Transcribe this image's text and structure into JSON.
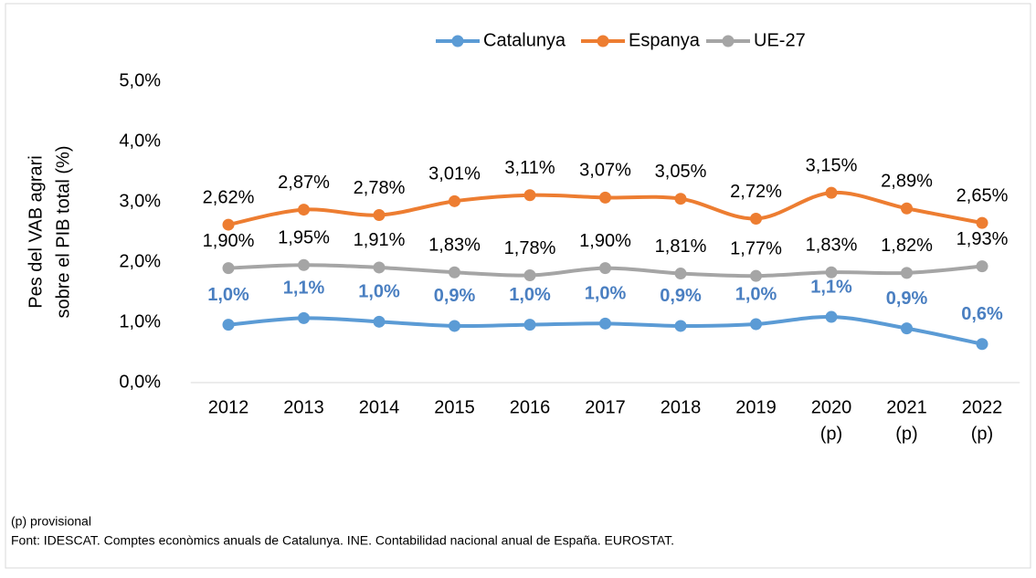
{
  "chart_data": {
    "type": "line",
    "y_label": [
      "Pes del VAB agrari",
      "sobre el PIB total (%)"
    ],
    "categories": [
      [
        "2012"
      ],
      [
        "2013"
      ],
      [
        "2014"
      ],
      [
        "2015"
      ],
      [
        "2016"
      ],
      [
        "2017"
      ],
      [
        "2018"
      ],
      [
        "2019"
      ],
      [
        "2020",
        "(p)"
      ],
      [
        "2021",
        "(p)"
      ],
      [
        "2022",
        "(p)"
      ]
    ],
    "series": [
      {
        "name": "Catalunya",
        "color": "#5b9bd5",
        "label_color": "#4a7fc1",
        "label_bold": true,
        "values": [
          0.96,
          1.07,
          1.01,
          0.94,
          0.96,
          0.98,
          0.94,
          0.97,
          1.09,
          0.9,
          0.64
        ],
        "value_labels": [
          "1,0%",
          "1,1%",
          "1,0%",
          "0,9%",
          "1,0%",
          "1,0%",
          "0,9%",
          "1,0%",
          "1,1%",
          "0,9%",
          "0,6%"
        ]
      },
      {
        "name": "Espanya",
        "color": "#ed7d31",
        "label_color": "#000000",
        "label_bold": false,
        "values": [
          2.62,
          2.87,
          2.78,
          3.01,
          3.11,
          3.07,
          3.05,
          2.72,
          3.15,
          2.89,
          2.65
        ],
        "value_labels": [
          "2,62%",
          "2,87%",
          "2,78%",
          "3,01%",
          "3,11%",
          "3,07%",
          "3,05%",
          "2,72%",
          "3,15%",
          "2,89%",
          "2,65%"
        ]
      },
      {
        "name": "UE-27",
        "color": "#a5a5a5",
        "label_color": "#000000",
        "label_bold": false,
        "values": [
          1.9,
          1.95,
          1.91,
          1.83,
          1.78,
          1.9,
          1.81,
          1.77,
          1.83,
          1.82,
          1.93
        ],
        "value_labels": [
          "1,90%",
          "1,95%",
          "1,91%",
          "1,83%",
          "1,78%",
          "1,90%",
          "1,81%",
          "1,77%",
          "1,83%",
          "1,82%",
          "1,93%"
        ]
      }
    ],
    "ylim": [
      0,
      5
    ],
    "yticks": [
      {
        "value": 0,
        "label": "0,0%"
      },
      {
        "value": 1,
        "label": "1,0%"
      },
      {
        "value": 2,
        "label": "2,0%"
      },
      {
        "value": 3,
        "label": "3,0%"
      },
      {
        "value": 4,
        "label": "4,0%"
      },
      {
        "value": 5,
        "label": "5,0%"
      }
    ],
    "grid": false,
    "legend": "top",
    "note": "(p) provisional",
    "source": "Font: IDESCAT. Comptes econòmics anuals de Catalunya. INE. Contabilidad nacional anual de España. EUROSTAT."
  }
}
